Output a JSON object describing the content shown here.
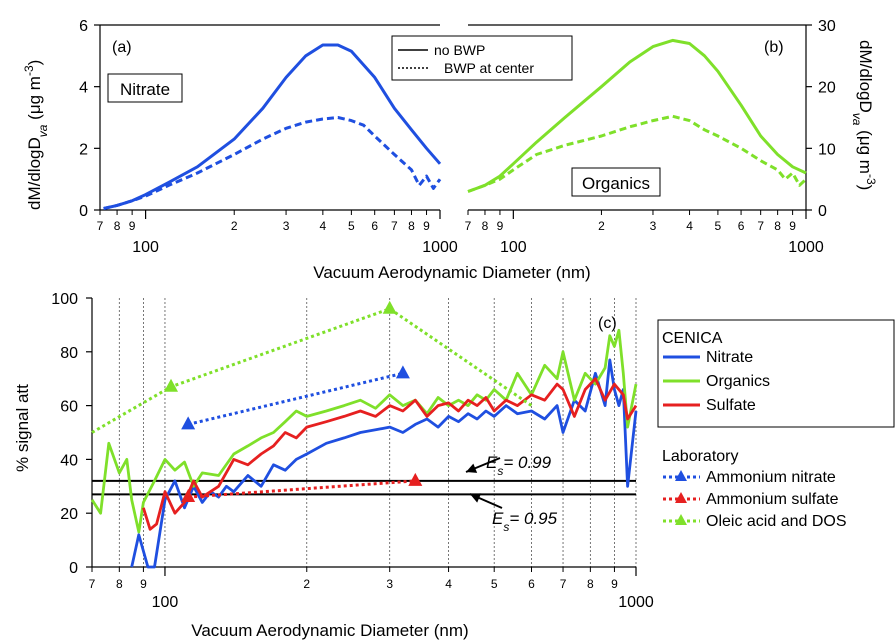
{
  "colors": {
    "nitrate": "#1f4fe0",
    "organics": "#7fe02a",
    "sulfate": "#e62020"
  },
  "chart_data": [
    {
      "id": "a",
      "type": "line",
      "panel_label": "(a)",
      "species_label": "Nitrate",
      "x_scale": "log",
      "xlim": [
        70,
        1000
      ],
      "ylim": [
        0,
        6
      ],
      "yticks": [
        0,
        2,
        4,
        6
      ],
      "xticks_minor": [
        "7",
        "8",
        "9",
        "2",
        "3",
        "4",
        "5",
        "6",
        "7",
        "8",
        "9"
      ],
      "xticks_major": [
        "100",
        "1000"
      ],
      "ylabel_prefix": "dM/dlogD",
      "ylabel_sub": "va",
      "ylabel_suffix": " (μg m",
      "ylabel_sup": "-3",
      "ylabel_end": ")",
      "legend": {
        "solid": "no BWP",
        "dotted": "BWP at center"
      },
      "series": [
        {
          "name": "no BWP",
          "style": "solid",
          "x": [
            72,
            80,
            90,
            100,
            120,
            150,
            200,
            250,
            300,
            350,
            400,
            450,
            500,
            600,
            700,
            800,
            900,
            1000
          ],
          "y": [
            0.05,
            0.15,
            0.3,
            0.5,
            0.9,
            1.4,
            2.3,
            3.3,
            4.3,
            5.0,
            5.35,
            5.35,
            5.15,
            4.3,
            3.3,
            2.6,
            2.0,
            1.5
          ]
        },
        {
          "name": "BWP at center",
          "style": "dotted",
          "x": [
            72,
            80,
            90,
            100,
            120,
            150,
            200,
            250,
            300,
            350,
            400,
            450,
            500,
            550,
            600,
            700,
            800,
            850,
            900,
            950,
            1000
          ],
          "y": [
            0.05,
            0.15,
            0.3,
            0.45,
            0.8,
            1.2,
            1.8,
            2.3,
            2.65,
            2.85,
            2.95,
            3.0,
            2.9,
            2.75,
            2.4,
            1.8,
            1.3,
            0.8,
            1.1,
            0.7,
            1.0
          ]
        }
      ]
    },
    {
      "id": "b",
      "type": "line",
      "panel_label": "(b)",
      "species_label": "Organics",
      "x_scale": "log",
      "xlim": [
        70,
        1000
      ],
      "ylim": [
        0,
        30
      ],
      "yticks": [
        0,
        10,
        20,
        30
      ],
      "xticks_minor": [
        "7",
        "8",
        "9",
        "2",
        "3",
        "4",
        "5",
        "6",
        "7",
        "8",
        "9"
      ],
      "xticks_major": [
        "100",
        "1000"
      ],
      "ylabel_prefix": "dM/dlogD",
      "ylabel_sub": "va",
      "ylabel_suffix": " (μg m",
      "ylabel_sup": "-3",
      "ylabel_end": ")",
      "series": [
        {
          "name": "no BWP",
          "style": "solid",
          "x": [
            70,
            80,
            90,
            100,
            120,
            150,
            200,
            250,
            300,
            350,
            400,
            450,
            500,
            600,
            700,
            800,
            900,
            1000
          ],
          "y": [
            3,
            4,
            5.5,
            7.5,
            11,
            15,
            20,
            24,
            26.5,
            27.5,
            27,
            25,
            22.5,
            17,
            12,
            9,
            7,
            6
          ]
        },
        {
          "name": "BWP at center",
          "style": "dotted",
          "x": [
            70,
            80,
            90,
            100,
            120,
            150,
            200,
            250,
            300,
            350,
            400,
            450,
            500,
            600,
            700,
            800,
            850,
            900,
            950,
            1000
          ],
          "y": [
            3,
            4,
            5,
            6.5,
            9,
            10.5,
            12,
            13.5,
            14.5,
            15.2,
            14.5,
            13,
            12,
            10,
            8,
            6.5,
            5,
            6,
            4,
            5
          ]
        }
      ]
    },
    {
      "id": "c",
      "type": "line",
      "panel_label": "(c)",
      "x_scale": "log",
      "xlim": [
        70,
        1000
      ],
      "ylim": [
        0,
        100
      ],
      "yticks": [
        0,
        20,
        40,
        60,
        80,
        100
      ],
      "xticks_minor": [
        "7",
        "8",
        "9",
        "2",
        "3",
        "4",
        "5",
        "6",
        "7",
        "8",
        "9"
      ],
      "xticks_major": [
        "100",
        "1000"
      ],
      "xlabel": "Vacuum Aerodynamic Diameter (nm)",
      "ylabel": "% signal att",
      "grid_x": true,
      "hlines": [
        {
          "y": 32,
          "label_E": "E",
          "label_s": "s",
          "label_val": "= 0.99"
        },
        {
          "y": 27,
          "label_E": "E",
          "label_s": "s",
          "label_val": "= 0.95"
        }
      ],
      "legend": {
        "group1_title": "CENICA",
        "group1": [
          "Nitrate",
          "Organics",
          "Sulfate"
        ],
        "group2_title": "Laboratory",
        "group2": [
          "Ammonium nitrate",
          "Ammonium sulfate",
          "Oleic acid and DOS"
        ]
      },
      "series": [
        {
          "name": "Nitrate",
          "group": "CENICA",
          "x": [
            85,
            88,
            92,
            95,
            100,
            105,
            110,
            115,
            120,
            125,
            130,
            135,
            140,
            150,
            160,
            170,
            180,
            190,
            200,
            220,
            240,
            260,
            280,
            300,
            320,
            340,
            360,
            380,
            400,
            420,
            440,
            460,
            480,
            500,
            530,
            560,
            600,
            640,
            680,
            700,
            740,
            780,
            820,
            860,
            880,
            900,
            920,
            940,
            960,
            1000
          ],
          "y": [
            0,
            12,
            0,
            0,
            25,
            32,
            22,
            30,
            24,
            28,
            26,
            30,
            28,
            34,
            30,
            38,
            36,
            40,
            42,
            46,
            48,
            50,
            51,
            52,
            50,
            53,
            55,
            52,
            56,
            54,
            57,
            55,
            58,
            56,
            60,
            57,
            58,
            55,
            60,
            50,
            62,
            58,
            72,
            60,
            77,
            66,
            60,
            66,
            30,
            58
          ]
        },
        {
          "name": "Organics",
          "group": "CENICA",
          "x": [
            70,
            73,
            76,
            80,
            83,
            85,
            88,
            90,
            95,
            100,
            105,
            110,
            115,
            120,
            130,
            140,
            150,
            160,
            170,
            180,
            190,
            200,
            220,
            240,
            260,
            280,
            300,
            320,
            340,
            360,
            380,
            400,
            420,
            440,
            460,
            480,
            500,
            530,
            560,
            600,
            640,
            680,
            700,
            740,
            780,
            820,
            860,
            880,
            900,
            920,
            940,
            960,
            1000
          ],
          "y": [
            25,
            20,
            46,
            35,
            40,
            25,
            13,
            24,
            32,
            40,
            36,
            39,
            30,
            35,
            34,
            42,
            45,
            48,
            50,
            54,
            58,
            56,
            58,
            60,
            62,
            59,
            64,
            60,
            62,
            57,
            63,
            60,
            62,
            60,
            64,
            62,
            66,
            62,
            72,
            64,
            75,
            70,
            80,
            62,
            72,
            68,
            74,
            86,
            82,
            88,
            72,
            52,
            68
          ]
        },
        {
          "name": "Sulfate",
          "group": "CENICA",
          "x": [
            90,
            93,
            96,
            100,
            105,
            110,
            115,
            120,
            130,
            140,
            150,
            160,
            170,
            180,
            190,
            200,
            220,
            240,
            260,
            280,
            300,
            320,
            340,
            360,
            380,
            400,
            420,
            440,
            460,
            480,
            500,
            530,
            560,
            600,
            640,
            680,
            700,
            740,
            780,
            820,
            860,
            900,
            940,
            960,
            1000
          ],
          "y": [
            22,
            14,
            16,
            28,
            20,
            24,
            32,
            26,
            30,
            40,
            38,
            42,
            45,
            50,
            48,
            52,
            54,
            56,
            58,
            56,
            60,
            58,
            62,
            56,
            60,
            61,
            58,
            62,
            60,
            63,
            58,
            62,
            60,
            64,
            62,
            68,
            66,
            56,
            66,
            70,
            62,
            68,
            64,
            55,
            60
          ]
        },
        {
          "name": "Ammonium nitrate",
          "group": "Laboratory",
          "x": [
            112,
            320
          ],
          "y": [
            53,
            72
          ]
        },
        {
          "name": "Ammonium sulfate",
          "group": "Laboratory",
          "x": [
            112,
            340
          ],
          "y": [
            26,
            32
          ]
        },
        {
          "name": "Oleic acid and DOS",
          "group": "Laboratory",
          "x": [
            70,
            103,
            300,
            600
          ],
          "y": [
            50,
            67,
            96,
            60
          ]
        }
      ]
    }
  ]
}
